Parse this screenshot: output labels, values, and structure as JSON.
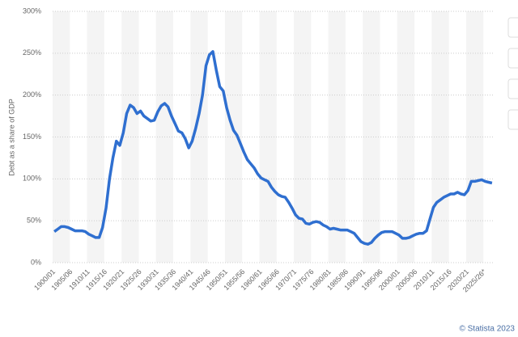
{
  "chart_data": {
    "type": "line",
    "y_label": "Debt as a share of GDP",
    "source": "© Statista 2023",
    "color": "#2f6fd0",
    "grid": true,
    "ylim": [
      0,
      300
    ],
    "yticks": [
      {
        "value": 0,
        "label": "0%"
      },
      {
        "value": 50,
        "label": "50%"
      },
      {
        "value": 100,
        "label": "100%"
      },
      {
        "value": 150,
        "label": "150%"
      },
      {
        "value": 200,
        "label": "200%"
      },
      {
        "value": 250,
        "label": "250%"
      },
      {
        "value": 300,
        "label": "300%"
      }
    ],
    "categories": [
      "1900/01",
      null,
      null,
      null,
      null,
      "1905/06",
      null,
      null,
      null,
      null,
      "1910/11",
      null,
      null,
      null,
      null,
      "1915/16",
      null,
      null,
      null,
      null,
      "1920/21",
      null,
      null,
      null,
      null,
      "1925/26",
      null,
      null,
      null,
      null,
      "1930/31",
      null,
      null,
      null,
      null,
      "1935/36",
      null,
      null,
      null,
      null,
      "1940/41",
      null,
      null,
      null,
      null,
      "1945/46",
      null,
      null,
      null,
      null,
      "1950/51",
      null,
      null,
      null,
      null,
      "1955/56",
      null,
      null,
      null,
      null,
      "1960/61",
      null,
      null,
      null,
      null,
      "1965/66",
      null,
      null,
      null,
      null,
      "1970/71",
      null,
      null,
      null,
      null,
      "1975/76",
      null,
      null,
      null,
      null,
      "1980/81",
      null,
      null,
      null,
      null,
      "1985/86",
      null,
      null,
      null,
      null,
      "1990/91",
      null,
      null,
      null,
      null,
      "1995/96",
      null,
      null,
      null,
      null,
      "2000/01",
      null,
      null,
      null,
      null,
      "2005/06",
      null,
      null,
      null,
      null,
      "2010/11",
      null,
      null,
      null,
      null,
      "2015/16",
      null,
      null,
      null,
      null,
      "2020/21",
      null,
      null,
      null,
      null,
      "2025/26*",
      null,
      null
    ],
    "values": [
      37,
      40,
      43,
      43,
      42,
      40,
      38,
      38,
      38,
      37,
      34,
      32,
      30,
      30,
      42,
      65,
      100,
      125,
      145,
      140,
      155,
      178,
      188,
      185,
      178,
      181,
      175,
      172,
      169,
      170,
      180,
      187,
      190,
      186,
      175,
      166,
      157,
      155,
      148,
      137,
      145,
      160,
      178,
      200,
      235,
      248,
      252,
      230,
      210,
      205,
      185,
      170,
      158,
      152,
      142,
      132,
      123,
      118,
      113,
      106,
      101,
      99,
      97,
      90,
      85,
      81,
      79,
      78,
      72,
      65,
      57,
      53,
      52,
      47,
      46,
      48,
      49,
      48,
      45,
      43,
      40,
      41,
      40,
      39,
      39,
      39,
      37,
      35,
      30,
      25,
      23,
      22,
      24,
      29,
      33,
      36,
      37,
      37,
      37,
      35,
      33,
      29,
      29,
      30,
      32,
      34,
      35,
      35,
      38,
      52,
      66,
      72,
      75,
      78,
      80,
      82,
      82,
      84,
      82,
      81,
      86,
      97,
      97,
      98,
      99,
      97,
      96,
      95
    ]
  }
}
